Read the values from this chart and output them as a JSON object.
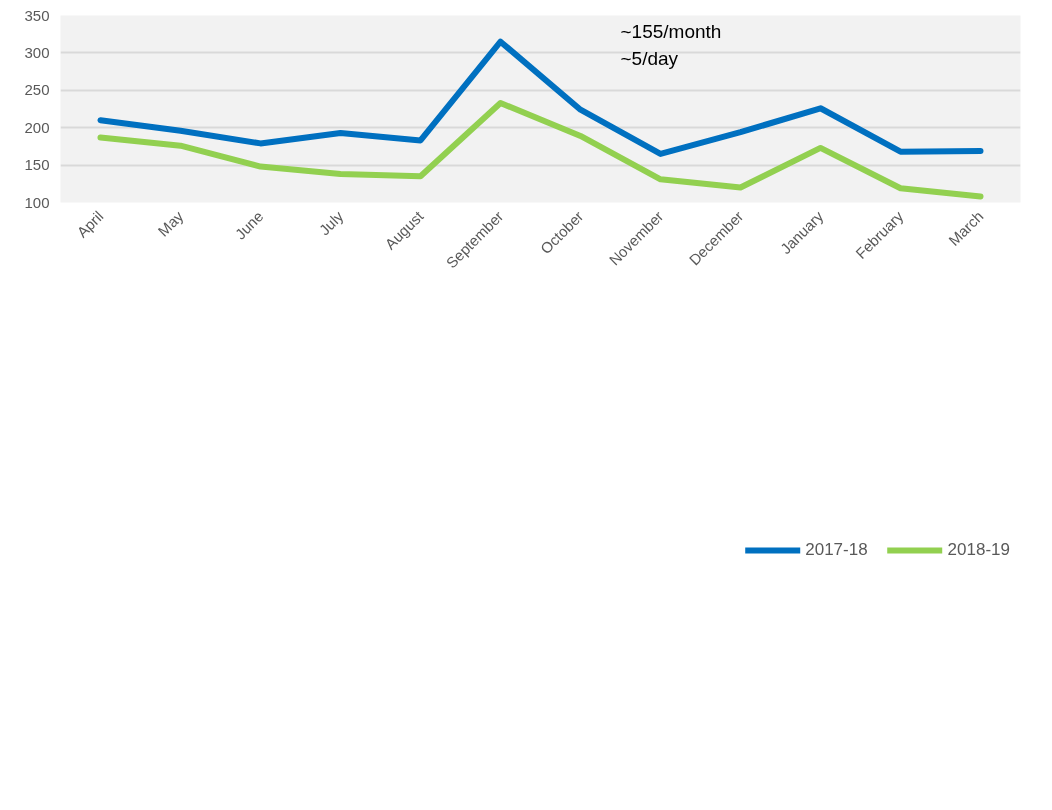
{
  "chart_data": {
    "type": "line",
    "categories": [
      "April",
      "May",
      "June",
      "July",
      "August",
      "September",
      "October",
      "November",
      "December",
      "January",
      "February",
      "March"
    ],
    "series": [
      {
        "name": "2017-18",
        "color": "#0070c0",
        "values": [
          210,
          196,
          179,
          193,
          183,
          315,
          224,
          165,
          194,
          226,
          168,
          169
        ]
      },
      {
        "name": "2018-19",
        "color": "#92d050",
        "values": [
          187,
          176,
          148,
          138,
          135,
          233,
          189,
          131,
          120,
          173,
          119,
          108
        ]
      }
    ],
    "ylim": [
      100,
      350
    ],
    "yticks": [
      100,
      150,
      200,
      250,
      300,
      350
    ],
    "grid": "y",
    "legend": "bottom",
    "marker": "none",
    "line_style": "solid",
    "annotations": [
      "~155/month\n~5/day"
    ]
  }
}
